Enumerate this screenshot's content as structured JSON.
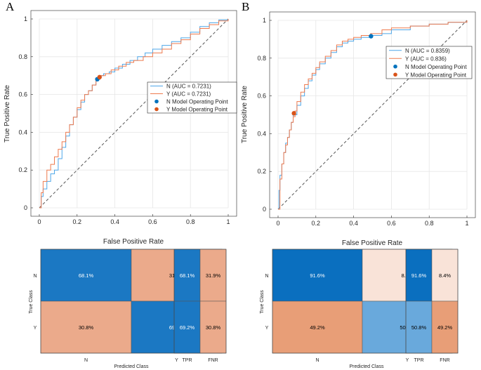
{
  "colors": {
    "n_line": "#4da6e8",
    "y_line": "#ee7a4e",
    "n_point": "#0072bd",
    "y_point": "#d95319",
    "diag": "#555555",
    "grid": "#e6e6e6"
  },
  "chart_data": [
    {
      "type": "line",
      "panel": "A",
      "xlabel": "False Positive Rate",
      "ylabel": "True Positive Rate",
      "xlim": [
        0,
        1
      ],
      "ylim": [
        0,
        1
      ],
      "xticks": [
        "0",
        "0.2",
        "0.4",
        "0.6",
        "0.8",
        "1"
      ],
      "yticks": [
        "0",
        "0.2",
        "0.4",
        "0.6",
        "0.8",
        "1"
      ],
      "legend_position": "center-right",
      "series": [
        {
          "name": "N (AUC = 0.7231)",
          "color": "#4da6e8",
          "x": [
            0,
            0.01,
            0.02,
            0.04,
            0.06,
            0.08,
            0.1,
            0.12,
            0.14,
            0.16,
            0.18,
            0.2,
            0.22,
            0.24,
            0.26,
            0.28,
            0.3,
            0.32,
            0.34,
            0.37,
            0.4,
            0.44,
            0.48,
            0.52,
            0.56,
            0.6,
            0.65,
            0.7,
            0.75,
            0.8,
            0.85,
            0.9,
            0.95,
            1
          ],
          "y": [
            0,
            0.06,
            0.1,
            0.14,
            0.18,
            0.2,
            0.26,
            0.32,
            0.38,
            0.44,
            0.48,
            0.52,
            0.56,
            0.6,
            0.62,
            0.65,
            0.68,
            0.7,
            0.71,
            0.72,
            0.74,
            0.76,
            0.78,
            0.8,
            0.82,
            0.84,
            0.86,
            0.88,
            0.9,
            0.93,
            0.96,
            0.98,
            0.995,
            1
          ]
        },
        {
          "name": "Y (AUC = 0.7231)",
          "color": "#ee7a4e",
          "x": [
            0,
            0.01,
            0.02,
            0.04,
            0.06,
            0.08,
            0.1,
            0.12,
            0.14,
            0.16,
            0.18,
            0.2,
            0.22,
            0.24,
            0.26,
            0.28,
            0.3,
            0.32,
            0.35,
            0.38,
            0.42,
            0.46,
            0.5,
            0.55,
            0.6,
            0.65,
            0.7,
            0.75,
            0.8,
            0.85,
            0.9,
            0.95,
            1
          ],
          "y": [
            0,
            0.08,
            0.14,
            0.2,
            0.23,
            0.27,
            0.31,
            0.35,
            0.4,
            0.44,
            0.48,
            0.53,
            0.57,
            0.6,
            0.62,
            0.65,
            0.68,
            0.7,
            0.71,
            0.73,
            0.75,
            0.77,
            0.78,
            0.8,
            0.82,
            0.84,
            0.87,
            0.89,
            0.92,
            0.95,
            0.97,
            0.99,
            1
          ]
        },
        {
          "name": "N Model Operating Point",
          "marker": "point",
          "color": "#0072bd",
          "x": [
            0.307
          ],
          "y": [
            0.681
          ]
        },
        {
          "name": "Y Model Operating Point",
          "marker": "point",
          "color": "#d95319",
          "x": [
            0.319
          ],
          "y": [
            0.692
          ]
        }
      ],
      "confusion_matrix": {
        "true_class_label": "True Class",
        "predicted_class_label": "Predicted Class",
        "classes": [
          "N",
          "Y"
        ],
        "cells": [
          [
            "68.1%",
            "31.9%"
          ],
          [
            "30.8%",
            "69.2%"
          ]
        ],
        "cell_values": [
          [
            68.1,
            31.9
          ],
          [
            30.8,
            69.2
          ]
        ],
        "summary_headers": [
          "TPR",
          "FNR"
        ],
        "summary": [
          [
            "68.1%",
            "31.9%"
          ],
          [
            "69.2%",
            "30.8%"
          ]
        ],
        "summary_values": [
          [
            68.1,
            31.9
          ],
          [
            69.2,
            30.8
          ]
        ]
      }
    },
    {
      "type": "line",
      "panel": "B",
      "xlabel": "False Positive Rate",
      "ylabel": "True Positive Rate",
      "xlim": [
        0,
        1
      ],
      "ylim": [
        0,
        1
      ],
      "xticks": [
        "0",
        "0.2",
        "0.4",
        "0.6",
        "0.8",
        "1"
      ],
      "yticks": [
        "0",
        "0.2",
        "0.4",
        "0.6",
        "0.8",
        "1"
      ],
      "legend_position": "top-right",
      "series": [
        {
          "name": "N (AUC = 0.8359)",
          "color": "#4da6e8",
          "x": [
            0,
            0.005,
            0.01,
            0.02,
            0.03,
            0.04,
            0.05,
            0.06,
            0.07,
            0.08,
            0.1,
            0.12,
            0.14,
            0.16,
            0.18,
            0.2,
            0.22,
            0.25,
            0.28,
            0.31,
            0.34,
            0.37,
            0.4,
            0.44,
            0.49,
            0.55,
            0.6,
            0.7,
            0.8,
            0.9,
            1
          ],
          "y": [
            0,
            0.1,
            0.18,
            0.24,
            0.3,
            0.35,
            0.38,
            0.42,
            0.46,
            0.5,
            0.55,
            0.6,
            0.64,
            0.68,
            0.71,
            0.74,
            0.77,
            0.8,
            0.83,
            0.86,
            0.88,
            0.89,
            0.9,
            0.91,
            0.92,
            0.93,
            0.95,
            0.97,
            0.98,
            0.99,
            1
          ]
        },
        {
          "name": "Y (AUC = 0.836)",
          "color": "#ee7a4e",
          "x": [
            0,
            0.01,
            0.02,
            0.03,
            0.04,
            0.05,
            0.06,
            0.07,
            0.08,
            0.09,
            0.1,
            0.12,
            0.14,
            0.16,
            0.18,
            0.2,
            0.22,
            0.25,
            0.28,
            0.31,
            0.34,
            0.37,
            0.4,
            0.44,
            0.49,
            0.55,
            0.6,
            0.7,
            0.8,
            0.9,
            1
          ],
          "y": [
            0,
            0.16,
            0.24,
            0.3,
            0.34,
            0.38,
            0.42,
            0.46,
            0.49,
            0.52,
            0.57,
            0.62,
            0.66,
            0.69,
            0.72,
            0.75,
            0.78,
            0.81,
            0.84,
            0.87,
            0.89,
            0.9,
            0.91,
            0.92,
            0.93,
            0.95,
            0.96,
            0.97,
            0.98,
            0.99,
            1
          ]
        },
        {
          "name": "N Model Operating Point",
          "marker": "point",
          "color": "#0072bd",
          "x": [
            0.492
          ],
          "y": [
            0.916
          ]
        },
        {
          "name": "Y Model Operating Point",
          "marker": "point",
          "color": "#d95319",
          "x": [
            0.084
          ],
          "y": [
            0.508
          ]
        }
      ],
      "confusion_matrix": {
        "true_class_label": "True Class",
        "predicted_class_label": "Predicted Class",
        "classes": [
          "N",
          "Y"
        ],
        "cells": [
          [
            "91.6%",
            "8.4%"
          ],
          [
            "49.2%",
            "50.8%"
          ]
        ],
        "cell_values": [
          [
            91.6,
            8.4
          ],
          [
            49.2,
            50.8
          ]
        ],
        "summary_headers": [
          "TPR",
          "FNR"
        ],
        "summary": [
          [
            "91.6%",
            "8.4%"
          ],
          [
            "50.8%",
            "49.2%"
          ]
        ],
        "summary_values": [
          [
            91.6,
            8.4
          ],
          [
            50.8,
            49.2
          ]
        ]
      }
    }
  ]
}
